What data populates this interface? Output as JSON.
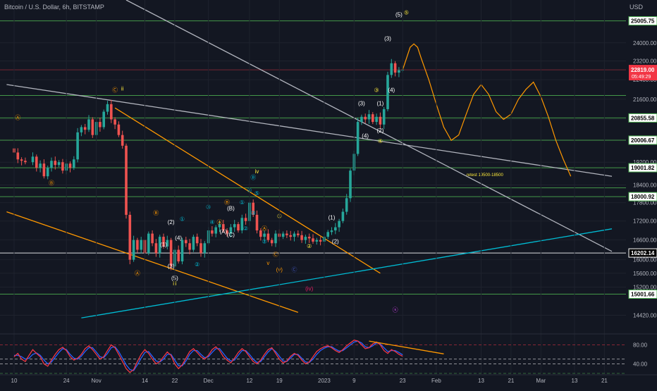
{
  "header": {
    "title": "Bitcoin / U.S. Dollar, 6h, BITSTAMP",
    "currency": "USD"
  },
  "chart_data": {
    "type": "candlestick",
    "y_scale": "log",
    "ylim": [
      14000,
      26000
    ],
    "y_ticks": [
      24000,
      23200,
      22400,
      21600,
      20800,
      20000,
      19200,
      18400,
      17800,
      17200,
      16600,
      16000,
      15600,
      15200,
      14420
    ],
    "y_tick_labels": [
      "24000.00",
      "23200.00",
      "22400.00",
      "21600.00",
      "20800.00",
      "20000.00",
      "19200.00",
      "18400.00",
      "17800.00",
      "17200.00",
      "16600.00",
      "16000.00",
      "15600.00",
      "15200.00",
      "14420.00"
    ],
    "x_ticks": [
      {
        "day": 0,
        "label": "10"
      },
      {
        "day": 14,
        "label": "24"
      },
      {
        "day": 22,
        "label": "Nov"
      },
      {
        "day": 35,
        "label": "14"
      },
      {
        "day": 43,
        "label": "22"
      },
      {
        "day": 52,
        "label": "Dec"
      },
      {
        "day": 63,
        "label": "12"
      },
      {
        "day": 71,
        "label": "19"
      },
      {
        "day": 83,
        "label": "2023"
      },
      {
        "day": 91,
        "label": "9"
      },
      {
        "day": 104,
        "label": "23"
      },
      {
        "day": 113,
        "label": "Feb"
      },
      {
        "day": 125,
        "label": "13"
      },
      {
        "day": 133,
        "label": "21"
      },
      {
        "day": 141,
        "label": "Mar"
      },
      {
        "day": 150,
        "label": "13"
      },
      {
        "day": 158,
        "label": "21"
      }
    ],
    "price_levels": [
      {
        "value": 25005.75,
        "label": "25005.75",
        "color": "#4caf50"
      },
      {
        "value": 21750,
        "label": "",
        "color": "#4caf50"
      },
      {
        "value": 20855.58,
        "label": "20855.58",
        "color": "#4caf50"
      },
      {
        "value": 20006.67,
        "label": "20006.67",
        "color": "#4caf50"
      },
      {
        "value": 19001.82,
        "label": "19001.82",
        "color": "#4caf50"
      },
      {
        "value": 18300,
        "label": "",
        "color": "#4caf50"
      },
      {
        "value": 18000.92,
        "label": "18000.92",
        "color": "#4caf50"
      },
      {
        "value": 16202.14,
        "label": "16202.14",
        "color": "#ffffff"
      },
      {
        "value": 15001.66,
        "label": "15001.66",
        "color": "#4caf50"
      }
    ],
    "current_price": {
      "value": 22819.0,
      "label": "22819.00",
      "countdown": "05:49:29",
      "color": "#f23645"
    },
    "price_path": [
      [
        -2,
        19700
      ],
      [
        0,
        19550
      ],
      [
        1,
        19300
      ],
      [
        2,
        19250
      ],
      [
        3,
        19200
      ],
      [
        5,
        19400
      ],
      [
        6,
        19000
      ],
      [
        7,
        19150
      ],
      [
        8,
        18700
      ],
      [
        9,
        19000
      ],
      [
        10,
        19250
      ],
      [
        11,
        19100
      ],
      [
        12,
        19200
      ],
      [
        13,
        18900
      ],
      [
        14,
        19150
      ],
      [
        15,
        19000
      ],
      [
        16,
        19300
      ],
      [
        17,
        20300
      ],
      [
        18,
        20500
      ],
      [
        19,
        20400
      ],
      [
        20,
        20800
      ],
      [
        21,
        20200
      ],
      [
        22,
        20700
      ],
      [
        23,
        20500
      ],
      [
        24,
        21100
      ],
      [
        25,
        21400
      ],
      [
        26,
        20800
      ],
      [
        27,
        20600
      ],
      [
        28,
        20200
      ],
      [
        29,
        19800
      ],
      [
        30,
        17400
      ],
      [
        31,
        16000
      ],
      [
        32,
        16600
      ],
      [
        33,
        16300
      ],
      [
        34,
        16600
      ],
      [
        35,
        16200
      ],
      [
        36,
        16800
      ],
      [
        37,
        16500
      ],
      [
        38,
        16200
      ],
      [
        39,
        16700
      ],
      [
        40,
        16400
      ],
      [
        41,
        16600
      ],
      [
        42,
        15800
      ],
      [
        43,
        16300
      ],
      [
        44,
        15950
      ],
      [
        45,
        16600
      ],
      [
        46,
        16500
      ],
      [
        47,
        16300
      ],
      [
        48,
        16700
      ],
      [
        49,
        16500
      ],
      [
        50,
        16200
      ],
      [
        51,
        16500
      ],
      [
        52,
        16900
      ],
      [
        53,
        16800
      ],
      [
        54,
        17000
      ],
      [
        55,
        17100
      ],
      [
        56,
        16900
      ],
      [
        57,
        16800
      ],
      [
        58,
        17000
      ],
      [
        59,
        17100
      ],
      [
        60,
        16900
      ],
      [
        61,
        17300
      ],
      [
        62,
        17200
      ],
      [
        63,
        17800
      ],
      [
        64,
        17400
      ],
      [
        65,
        16900
      ],
      [
        66,
        16700
      ],
      [
        67,
        16800
      ],
      [
        68,
        16600
      ],
      [
        69,
        16500
      ],
      [
        70,
        16800
      ],
      [
        71,
        16700
      ],
      [
        72,
        16800
      ],
      [
        73,
        16750
      ],
      [
        74,
        16700
      ],
      [
        75,
        16800
      ],
      [
        76,
        16750
      ],
      [
        77,
        16600
      ],
      [
        78,
        16700
      ],
      [
        79,
        16650
      ],
      [
        80,
        16550
      ],
      [
        81,
        16600
      ],
      [
        82,
        16550
      ],
      [
        83,
        16700
      ],
      [
        84,
        16850
      ],
      [
        85,
        16900
      ],
      [
        86,
        17000
      ],
      [
        87,
        17200
      ],
      [
        88,
        17500
      ],
      [
        89,
        17950
      ],
      [
        90,
        18900
      ],
      [
        91,
        19500
      ],
      [
        92,
        20700
      ],
      [
        93,
        20900
      ],
      [
        94,
        20800
      ],
      [
        95,
        21000
      ],
      [
        96,
        20700
      ],
      [
        97,
        20900
      ],
      [
        98,
        20600
      ],
      [
        99,
        21200
      ],
      [
        100,
        22600
      ],
      [
        101,
        23100
      ],
      [
        102,
        22700
      ],
      [
        103,
        22800
      ],
      [
        104,
        22819
      ]
    ],
    "projection_path": [
      [
        104,
        22819
      ],
      [
        106,
        23800
      ],
      [
        107,
        23950
      ],
      [
        108,
        23800
      ],
      [
        109,
        23300
      ],
      [
        111,
        22400
      ],
      [
        113,
        21400
      ],
      [
        115,
        20500
      ],
      [
        117,
        20000
      ],
      [
        119,
        20200
      ],
      [
        121,
        21000
      ],
      [
        123,
        21800
      ],
      [
        125,
        22200
      ],
      [
        127,
        21800
      ],
      [
        129,
        21100
      ],
      [
        131,
        20800
      ],
      [
        133,
        21000
      ],
      [
        135,
        21600
      ],
      [
        137,
        22000
      ],
      [
        139,
        22300
      ],
      [
        141,
        21700
      ],
      [
        143,
        20900
      ],
      [
        145,
        20000
      ],
      [
        147,
        19300
      ],
      [
        149,
        18700
      ]
    ],
    "trendlines": [
      {
        "name": "white-upper",
        "color": "#b2b5be",
        "p1": [
          -2,
          22200
        ],
        "p2": [
          160,
          18700
        ]
      },
      {
        "name": "white-lower",
        "color": "#b2b5be",
        "p1": [
          30,
          26000
        ],
        "p2": [
          160,
          16250
        ]
      },
      {
        "name": "orange-wedge-top",
        "color": "#ff9800",
        "p1": [
          27,
          21250
        ],
        "p2": [
          98,
          15600
        ]
      },
      {
        "name": "orange-base",
        "color": "#ff9800",
        "p1": [
          -2,
          17500
        ],
        "p2": [
          76,
          14500
        ]
      },
      {
        "name": "teal-support",
        "color": "#00bcd4",
        "p1": [
          18,
          14350
        ],
        "p2": [
          160,
          16950
        ]
      }
    ],
    "wave_labels": [
      {
        "t": "Ⓐ",
        "d": 1,
        "v": 20800,
        "c": "#ff9800"
      },
      {
        "t": "Ⓑ",
        "d": 10,
        "v": 18400,
        "c": "#ff9800"
      },
      {
        "t": "Ⓒ",
        "d": 27,
        "v": 21900,
        "c": "#ff9800"
      },
      {
        "t": "ii",
        "d": 29,
        "v": 21950,
        "c": "#ffeb3b"
      },
      {
        "t": "Ⓑ",
        "d": 38,
        "v": 17400,
        "c": "#ff9800"
      },
      {
        "t": "Ⓐ",
        "d": 33,
        "v": 15550,
        "c": "#ff9800"
      },
      {
        "t": "(2)",
        "d": 42,
        "v": 17100,
        "c": "#ffffff"
      },
      {
        "t": "(4)",
        "d": 44,
        "v": 16600,
        "c": "#ffffff"
      },
      {
        "t": "(1)",
        "d": 40,
        "v": 16400,
        "c": "#ffffff"
      },
      {
        "t": "(3)",
        "d": 42,
        "v": 15750,
        "c": "#ffffff"
      },
      {
        "t": "(5)",
        "d": 43,
        "v": 15400,
        "c": "#ffffff"
      },
      {
        "t": "iii",
        "d": 43,
        "v": 15250,
        "c": "#ffeb3b"
      },
      {
        "t": "①",
        "d": 45,
        "v": 17200,
        "c": "#00bcd4"
      },
      {
        "t": "②",
        "d": 49,
        "v": 15800,
        "c": "#00bcd4"
      },
      {
        "t": "③",
        "d": 52,
        "v": 17600,
        "c": "#00bcd4"
      },
      {
        "t": "④",
        "d": 53,
        "v": 17100,
        "c": "#00bcd4"
      },
      {
        "t": "Ⓑ",
        "d": 57,
        "v": 17750,
        "c": "#ff9800"
      },
      {
        "t": "(B)",
        "d": 58,
        "v": 17550,
        "c": "#ffffff"
      },
      {
        "t": "(A)",
        "d": 56,
        "v": 16800,
        "c": "#ffffff"
      },
      {
        "t": "(C)",
        "d": 58,
        "v": 16700,
        "c": "#ffffff"
      },
      {
        "t": "Ⓐ",
        "d": 55,
        "v": 17100,
        "c": "#ff9800"
      },
      {
        "t": "①",
        "d": 61,
        "v": 17750,
        "c": "#00bcd4"
      },
      {
        "t": "②",
        "d": 62,
        "v": 16900,
        "c": "#00bcd4"
      },
      {
        "t": "③",
        "d": 64,
        "v": 17400,
        "c": "#00bcd4"
      },
      {
        "t": "④",
        "d": 63,
        "v": 18150,
        "c": "#00bcd4"
      },
      {
        "t": "⑤",
        "d": 65,
        "v": 18050,
        "c": "#00bcd4"
      },
      {
        "t": "iv",
        "d": 65,
        "v": 18800,
        "c": "#ffeb3b"
      },
      {
        "t": "Ⓑ",
        "d": 64,
        "v": 18600,
        "c": "#00bcd4"
      },
      {
        "t": "Ⓐ",
        "d": 67,
        "v": 16900,
        "c": "#ff9800"
      },
      {
        "t": "②",
        "d": 67,
        "v": 16500,
        "c": "#00bcd4"
      },
      {
        "t": "①",
        "d": 71,
        "v": 17300,
        "c": "#ffeb3b"
      },
      {
        "t": "Ⓒ",
        "d": 70,
        "v": 16100,
        "c": "#ff9800"
      },
      {
        "t": "v",
        "d": 68,
        "v": 15850,
        "c": "#ff9800"
      },
      {
        "t": "(v)",
        "d": 71,
        "v": 15650,
        "c": "#ff9800"
      },
      {
        "t": "Ⓒ",
        "d": 75,
        "v": 15650,
        "c": "#3f51b5"
      },
      {
        "t": "②",
        "d": 79,
        "v": 16350,
        "c": "#ffeb3b"
      },
      {
        "t": "(1)",
        "d": 85,
        "v": 17250,
        "c": "#ffffff"
      },
      {
        "t": "(2)",
        "d": 86,
        "v": 16500,
        "c": "#ffffff"
      },
      {
        "t": "(iv)",
        "d": 79,
        "v": 15100,
        "c": "#e91e63"
      },
      {
        "t": "(3)",
        "d": 93,
        "v": 21350,
        "c": "#ffffff"
      },
      {
        "t": "③",
        "d": 97,
        "v": 21900,
        "c": "#ffeb3b"
      },
      {
        "t": "(1)",
        "d": 98,
        "v": 21350,
        "c": "#ffffff"
      },
      {
        "t": "(4)",
        "d": 94,
        "v": 20100,
        "c": "#ffffff"
      },
      {
        "t": "④",
        "d": 98,
        "v": 19900,
        "c": "#ffeb3b"
      },
      {
        "t": "(2)",
        "d": 98,
        "v": 20300,
        "c": "#ffffff"
      },
      {
        "t": "(4)",
        "d": 101,
        "v": 21900,
        "c": "#ffffff"
      },
      {
        "t": "(3)",
        "d": 100,
        "v": 24100,
        "c": "#ffffff"
      },
      {
        "t": "(5)",
        "d": 103,
        "v": 25200,
        "c": "#ffffff"
      },
      {
        "t": "⑤",
        "d": 105,
        "v": 25300,
        "c": "#ffeb3b"
      },
      {
        "t": "ⓢ",
        "d": 102,
        "v": 14520,
        "c": "#e040fb"
      }
    ],
    "annotations": [
      {
        "text": "retest 19500-18500",
        "d": 126,
        "v": 18700,
        "c": "#ffeb3b"
      }
    ],
    "oscillator": {
      "ylim": [
        20,
        100
      ],
      "levels": [
        {
          "value": 80,
          "label": "80.00",
          "color": "#f23645"
        },
        {
          "value": 50,
          "label": "",
          "color": "#ffffff"
        },
        {
          "value": 40,
          "label": "40.00",
          "color": "#ffffff"
        },
        {
          "value": 20,
          "label": "",
          "color": "#4caf50"
        }
      ],
      "k": [
        55,
        62,
        50,
        45,
        58,
        70,
        62,
        55,
        40,
        35,
        48,
        60,
        70,
        75,
        68,
        55,
        48,
        52,
        60,
        72,
        78,
        70,
        60,
        50,
        55,
        68,
        80,
        74,
        60,
        45,
        30,
        22,
        28,
        45,
        60,
        70,
        62,
        50,
        40,
        45,
        55,
        65,
        58,
        40,
        30,
        38,
        52,
        66,
        72,
        64,
        55,
        50,
        58,
        70,
        76,
        68,
        55,
        48,
        42,
        52,
        64,
        72,
        66,
        55,
        45,
        40,
        48,
        60,
        70,
        74,
        62,
        50,
        42,
        46,
        56,
        62,
        58,
        48,
        40,
        44,
        55,
        66,
        72,
        76,
        78,
        74,
        68,
        64,
        70,
        78,
        84,
        90,
        88,
        80,
        72,
        74,
        82,
        86,
        80,
        68,
        62,
        70,
        66,
        60,
        56
      ],
      "d": [
        58,
        58,
        55,
        50,
        52,
        60,
        63,
        58,
        48,
        40,
        44,
        54,
        64,
        72,
        70,
        60,
        52,
        50,
        56,
        66,
        74,
        74,
        65,
        55,
        53,
        62,
        74,
        76,
        66,
        52,
        38,
        28,
        26,
        38,
        52,
        64,
        66,
        56,
        46,
        44,
        50,
        60,
        60,
        48,
        36,
        36,
        46,
        60,
        68,
        68,
        60,
        53,
        55,
        64,
        72,
        72,
        62,
        52,
        46,
        48,
        58,
        68,
        68,
        60,
        50,
        43,
        45,
        55,
        65,
        72,
        66,
        56,
        46,
        45,
        52,
        60,
        60,
        52,
        44,
        43,
        50,
        60,
        68,
        73,
        76,
        76,
        71,
        67,
        68,
        74,
        80,
        86,
        88,
        84,
        76,
        74,
        78,
        84,
        82,
        74,
        66,
        68,
        68,
        64,
        59
      ],
      "trendline": {
        "p1": [
          95,
          88
        ],
        "p2": [
          115,
          61
        ],
        "color": "#ff9800"
      }
    }
  }
}
